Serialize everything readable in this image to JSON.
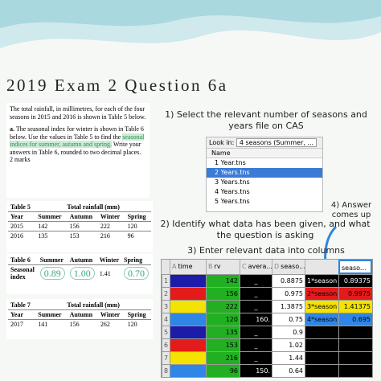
{
  "title": "2019 Exam 2 Question 6a",
  "question": {
    "intro": "The total rainfall, in millimetres, for each of the four seasons in 2015 and 2016 is shown in Table 5 below.",
    "part_label": "a.",
    "part_text_1": "The seasonal index for winter is shown in Table 6 below. Use the values in Table 5 to find the",
    "highlight": "seasonal indices for summer, autumn and spring.",
    "part_text_2": "Write your answers in Table 6, rounded to two decimal places.",
    "marks": "2 marks"
  },
  "table5": {
    "caption": "Table 5",
    "subtitle": "Total rainfall (mm)",
    "header": [
      "Year",
      "Summer",
      "Autumn",
      "Winter",
      "Spring"
    ],
    "rows": [
      [
        "2015",
        "142",
        "156",
        "222",
        "120"
      ],
      [
        "2016",
        "135",
        "153",
        "216",
        "96"
      ]
    ]
  },
  "table6": {
    "caption": "Table 6",
    "header": [
      "Summer",
      "Autumn",
      "Winter",
      "Spring"
    ],
    "row_label": "Seasonal index",
    "values": [
      "0.89",
      "1.00",
      "1.41",
      "0.70"
    ]
  },
  "table7": {
    "caption": "Table 7",
    "subtitle": "Total rainfall (mm)",
    "header": [
      "Year",
      "Summer",
      "Autumn",
      "Winter",
      "Spring"
    ],
    "rows": [
      [
        "2017",
        "141",
        "156",
        "262",
        "120"
      ]
    ]
  },
  "steps": {
    "step1": "1) Select the relevant number of seasons and years file on CAS",
    "step2": "2) Identify what data has been given, and what the question is asking",
    "step3": "3) Enter relevant data into columns",
    "step4": "4) Answer comes up"
  },
  "dialog": {
    "look_in_label": "Look in:",
    "look_in_value": "4 seasons (Summer, ...",
    "column": "Name",
    "files": [
      "1 Year.tns",
      "2 Years.tns",
      "3 Years.tns",
      "4 Years.tns",
      "5 Years.tns"
    ],
    "selected": 1
  },
  "spreadsheet": {
    "headers": [
      {
        "letter": "A",
        "name": "time"
      },
      {
        "letter": "B",
        "name": "rv"
      },
      {
        "letter": "C",
        "name": "avera..."
      },
      {
        "letter": "D",
        "name": "seaso..."
      },
      {},
      {
        "name": "seaso..."
      }
    ],
    "season_colors": [
      "#1c1ca8",
      "#e41b1b",
      "#f4e200",
      "#2f86e6"
    ],
    "rows": [
      {
        "n": "1",
        "rv": "142",
        "avg": "_",
        "si": "0.8875",
        "label": "1*season",
        "mean": "0.89375"
      },
      {
        "n": "2",
        "rv": "156",
        "avg": "_",
        "si": "0.975",
        "label": "2*season",
        "mean": "0.9975"
      },
      {
        "n": "3",
        "rv": "222",
        "avg": "_",
        "si": "1.3875",
        "label": "3*season",
        "mean": "1.41375"
      },
      {
        "n": "4",
        "rv": "120",
        "avg": "160.",
        "si": "0.75",
        "label": "4*season",
        "mean": "0.695"
      },
      {
        "n": "5",
        "rv": "135",
        "avg": "_",
        "si": "0.9"
      },
      {
        "n": "6",
        "rv": "153",
        "avg": "_",
        "si": "1.02"
      },
      {
        "n": "7",
        "rv": "216",
        "avg": "_",
        "si": "1.44"
      },
      {
        "n": "8",
        "rv": "96",
        "avg": "150.",
        "si": "0.64"
      }
    ]
  }
}
